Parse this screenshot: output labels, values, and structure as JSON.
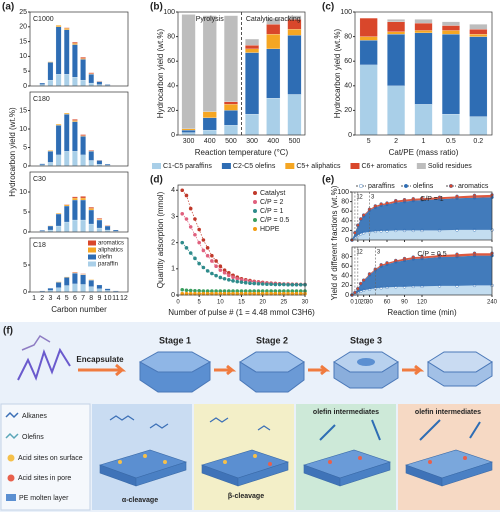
{
  "chart_data": [
    {
      "type": "bar",
      "panel": "(a)",
      "title": "C1000",
      "ylabel": "Hydrocarbon yield (wt.%)",
      "ylim": [
        0,
        25
      ],
      "yticks": [
        0,
        5,
        10,
        15,
        20,
        25
      ],
      "series": [
        {
          "color": "#a9cfe8",
          "values": [
            0,
            0.5,
            2,
            4,
            4,
            3,
            2,
            1,
            0.5,
            0.2,
            0,
            0
          ]
        },
        {
          "color": "#2e6db4",
          "values": [
            0,
            0.5,
            6,
            16,
            15,
            11,
            7,
            3,
            1,
            0.3,
            0,
            0
          ]
        },
        {
          "color": "#f5a623",
          "values": [
            0,
            0,
            0.2,
            0.5,
            0.5,
            0.4,
            0.3,
            0.2,
            0.1,
            0,
            0,
            0
          ]
        },
        {
          "color": "#d9472b",
          "values": [
            0,
            0,
            0,
            0,
            0.2,
            0.4,
            0.4,
            0.3,
            0.1,
            0,
            0,
            0
          ]
        }
      ]
    },
    {
      "type": "bar",
      "title": "C180",
      "ylim": [
        0,
        20
      ],
      "yticks": [
        0,
        5,
        10,
        15
      ],
      "series": [
        {
          "color": "#a9cfe8",
          "values": [
            0,
            0.3,
            1,
            3,
            4,
            4,
            3,
            1.5,
            0.5,
            0.2,
            0,
            0
          ]
        },
        {
          "color": "#2e6db4",
          "values": [
            0,
            0.3,
            3,
            8,
            10,
            8,
            5,
            2.5,
            1,
            0.3,
            0,
            0
          ]
        },
        {
          "color": "#f5a623",
          "values": [
            0,
            0,
            0.2,
            0.3,
            0.3,
            0.3,
            0.2,
            0.1,
            0,
            0,
            0,
            0
          ]
        },
        {
          "color": "#d9472b",
          "values": [
            0,
            0,
            0,
            0,
            0,
            0.3,
            0.3,
            0.2,
            0.1,
            0,
            0,
            0
          ]
        }
      ]
    },
    {
      "type": "bar",
      "title": "C30",
      "ylim": [
        0,
        15
      ],
      "yticks": [
        0,
        5,
        10
      ],
      "series": [
        {
          "color": "#a9cfe8",
          "values": [
            0,
            0.2,
            0.5,
            1.5,
            2.5,
            3,
            3,
            2,
            1,
            0.5,
            0.2,
            0
          ]
        },
        {
          "color": "#2e6db4",
          "values": [
            0,
            0.2,
            1,
            3,
            4,
            5,
            5,
            3.5,
            2,
            1,
            0.3,
            0
          ]
        },
        {
          "color": "#f5a623",
          "values": [
            0,
            0,
            0.1,
            0.2,
            0.3,
            0.5,
            0.5,
            0.4,
            0.2,
            0.1,
            0,
            0
          ]
        },
        {
          "color": "#d9472b",
          "values": [
            0,
            0,
            0,
            0,
            0.1,
            0.3,
            0.4,
            0.3,
            0.2,
            0.1,
            0,
            0
          ]
        }
      ]
    },
    {
      "type": "bar",
      "title": "C18",
      "xlabel": "Carbon number",
      "ylim": [
        0,
        10
      ],
      "yticks": [
        0,
        5
      ],
      "categories": [
        "1",
        "2",
        "3",
        "4",
        "5",
        "6",
        "7",
        "8",
        "9",
        "10",
        "11",
        "12"
      ],
      "series": [
        {
          "name": "paraffin",
          "color": "#a9cfe8",
          "values": [
            0,
            0.1,
            0.3,
            0.8,
            1.2,
            1.5,
            1.4,
            1,
            0.6,
            0.3,
            0.1,
            0
          ]
        },
        {
          "name": "olefin",
          "color": "#2e6db4",
          "values": [
            0,
            0.1,
            0.4,
            1,
            1.5,
            2,
            1.8,
            1.2,
            0.7,
            0.3,
            0.1,
            0
          ]
        },
        {
          "name": "aliphatics",
          "color": "#f5a623",
          "values": [
            0,
            0,
            0,
            0.1,
            0.1,
            0.1,
            0.1,
            0.1,
            0,
            0,
            0,
            0
          ]
        },
        {
          "name": "aromatics",
          "color": "#d9472b",
          "values": [
            0,
            0,
            0,
            0,
            0,
            0.1,
            0.1,
            0,
            0,
            0,
            0,
            0
          ]
        }
      ]
    },
    {
      "type": "bar",
      "panel": "(b)",
      "ylabel": "Hydrocarbon yield (wt.%)",
      "xlabel": "Reaction temperature (°C)",
      "annotations": [
        "Pyrolysis",
        "Catalytic cracking"
      ],
      "categories": [
        "300",
        "400",
        "500",
        "300",
        "400",
        "500"
      ],
      "ylim": [
        0,
        100
      ],
      "yticks": [
        0,
        20,
        40,
        60,
        80,
        100
      ],
      "series": [
        {
          "name": "C1-C5 paraffins",
          "color": "#a9cfe8",
          "values": [
            2,
            4,
            8,
            17,
            30,
            33
          ]
        },
        {
          "name": "C2-C5 olefins",
          "color": "#2e6db4",
          "values": [
            2,
            10,
            12,
            50,
            40,
            48
          ]
        },
        {
          "name": "C5+ aliphatics",
          "color": "#f5a623",
          "values": [
            1,
            5,
            5,
            3,
            12,
            5
          ]
        },
        {
          "name": "C6+ aromatics",
          "color": "#d9472b",
          "values": [
            0,
            0,
            2,
            3,
            8,
            8
          ]
        },
        {
          "name": "Solid residues",
          "color": "#bdbdbd",
          "values": [
            93,
            78,
            70,
            5,
            5,
            3
          ]
        }
      ]
    },
    {
      "type": "bar",
      "panel": "(c)",
      "ylabel": "Hydrocarbon yield (wt.%)",
      "xlabel": "Cat/PE (mass ratio)",
      "categories": [
        "5",
        "2",
        "1",
        "0.5",
        "0.2"
      ],
      "ylim": [
        0,
        100
      ],
      "yticks": [
        0,
        20,
        40,
        60,
        80,
        100
      ],
      "series": [
        {
          "color": "#a9cfe8",
          "values": [
            57,
            40,
            25,
            17,
            15
          ]
        },
        {
          "color": "#2e6db4",
          "values": [
            20,
            42,
            58,
            65,
            65
          ]
        },
        {
          "color": "#f5a623",
          "values": [
            3,
            2,
            2,
            3,
            2
          ]
        },
        {
          "color": "#d9472b",
          "values": [
            15,
            8,
            6,
            4,
            4
          ]
        },
        {
          "color": "#bdbdbd",
          "values": [
            0,
            2,
            3,
            3,
            4
          ]
        }
      ]
    },
    {
      "type": "scatter",
      "panel": "(d)",
      "ylabel": "Quantity adsorption (mmol)",
      "xlabel": "Number of pulse # (1 = 4.48 mmol C3H6)",
      "xlim": [
        0,
        30
      ],
      "xticks": [
        0,
        5,
        10,
        15,
        20,
        25,
        30
      ],
      "ylim": [
        0,
        4.2
      ],
      "yticks": [
        0,
        1,
        2,
        3,
        4
      ],
      "x": [
        1,
        2,
        3,
        4,
        5,
        6,
        7,
        8,
        9,
        10,
        11,
        12,
        13,
        14,
        15,
        16,
        17,
        18,
        19,
        20,
        21,
        22,
        23,
        24,
        25,
        26,
        27,
        28,
        29,
        30
      ],
      "series": [
        {
          "name": "Catalyst",
          "color": "#c0392b",
          "values": [
            4.0,
            3.8,
            3.3,
            2.9,
            2.5,
            2.1,
            1.8,
            1.5,
            1.3,
            1.1,
            0.95,
            0.85,
            0.75,
            0.68,
            0.62,
            0.58,
            0.55,
            0.52,
            0.5,
            0.48,
            0.46,
            0.45,
            0.44,
            0.43,
            0.42,
            0.42,
            0.41,
            0.41,
            0.4,
            0.4
          ]
        },
        {
          "name": "C/P = 2",
          "color": "#e0607e",
          "values": [
            3.1,
            2.9,
            2.6,
            2.3,
            2.0,
            1.7,
            1.5,
            1.3,
            1.1,
            0.95,
            0.85,
            0.75,
            0.68,
            0.62,
            0.58,
            0.55,
            0.52,
            0.5,
            0.48,
            0.46,
            0.45,
            0.44,
            0.43,
            0.42,
            0.41,
            0.41,
            0.4,
            0.4,
            0.4,
            0.4
          ]
        },
        {
          "name": "C/P = 1",
          "color": "#2e8b8b",
          "values": [
            2.0,
            1.8,
            1.6,
            1.4,
            1.2,
            1.05,
            0.92,
            0.82,
            0.74,
            0.67,
            0.62,
            0.58,
            0.54,
            0.51,
            0.49,
            0.47,
            0.45,
            0.44,
            0.43,
            0.42,
            0.41,
            0.41,
            0.4,
            0.4,
            0.4,
            0.39,
            0.39,
            0.39,
            0.39,
            0.39
          ]
        },
        {
          "name": "C/P = 0.5",
          "color": "#3a9e5f",
          "values": [
            0.2,
            0.18,
            0.17,
            0.16,
            0.16,
            0.15,
            0.15,
            0.15,
            0.15,
            0.15,
            0.15,
            0.15,
            0.15,
            0.15,
            0.15,
            0.15,
            0.15,
            0.15,
            0.15,
            0.15,
            0.15,
            0.15,
            0.15,
            0.15,
            0.15,
            0.15,
            0.15,
            0.15,
            0.15,
            0.15
          ]
        },
        {
          "name": "HDPE",
          "color": "#f39c12",
          "values": [
            0.05,
            0.05,
            0.05,
            0.05,
            0.05,
            0.05,
            0.05,
            0.05,
            0.05,
            0.05,
            0.05,
            0.05,
            0.05,
            0.05,
            0.05,
            0.05,
            0.05,
            0.05,
            0.05,
            0.05,
            0.05,
            0.05,
            0.05,
            0.05,
            0.05,
            0.05,
            0.05,
            0.05,
            0.05,
            0.05
          ]
        }
      ]
    },
    {
      "type": "area",
      "panel": "(e)",
      "ylabel": "Yield of different fractions (wt.%)",
      "annotation": "C/P = 1",
      "markers": [
        {
          "x": 5,
          "label": "1"
        },
        {
          "x": 10,
          "label": "2"
        },
        {
          "x": 30,
          "label": "3"
        }
      ],
      "xlim": [
        0,
        240
      ],
      "xticks": [
        0,
        10,
        20,
        30,
        60,
        90,
        120,
        240
      ],
      "ylim": [
        0,
        100
      ],
      "yticks": [
        0,
        20,
        40,
        60,
        80,
        100
      ],
      "x": [
        0,
        5,
        10,
        15,
        20,
        30,
        40,
        50,
        60,
        75,
        90,
        105,
        120,
        150,
        180,
        210,
        240
      ],
      "series": [
        {
          "name": "paraffins",
          "color": "#bcd9ee",
          "values": [
            0,
            5,
            10,
            13,
            15,
            17,
            18,
            19,
            19,
            20,
            20,
            20,
            20,
            20,
            21,
            21,
            21
          ]
        },
        {
          "name": "olefins",
          "color": "#2e6db4",
          "values": [
            0,
            10,
            20,
            30,
            35,
            45,
            50,
            53,
            55,
            58,
            60,
            62,
            63,
            65,
            66,
            67,
            68
          ]
        },
        {
          "name": "aromatics",
          "color": "#d9472b",
          "values": [
            0,
            0,
            1,
            1,
            2,
            2,
            3,
            3,
            3,
            4,
            4,
            4,
            4,
            4,
            4,
            5,
            5
          ]
        }
      ]
    },
    {
      "type": "area",
      "annotation": "C/P = 0.5",
      "xlabel": "Reaction time (min)",
      "markers": [
        {
          "x": 5,
          "label": "1"
        },
        {
          "x": 10,
          "label": "2"
        },
        {
          "x": 40,
          "label": "3"
        }
      ],
      "xlim": [
        0,
        240
      ],
      "xticks": [
        0,
        10,
        20,
        30,
        60,
        90,
        120,
        240
      ],
      "ylim": [
        0,
        100
      ],
      "yticks": [
        0,
        20,
        40,
        60,
        80
      ],
      "x": [
        0,
        5,
        10,
        15,
        20,
        30,
        40,
        50,
        60,
        75,
        90,
        105,
        120,
        150,
        180,
        210,
        240
      ],
      "series": [
        {
          "color": "#bcd9ee",
          "values": [
            0,
            2,
            5,
            8,
            10,
            12,
            14,
            15,
            16,
            17,
            17,
            18,
            18,
            19,
            19,
            20,
            20
          ]
        },
        {
          "color": "#2e6db4",
          "values": [
            0,
            3,
            8,
            15,
            20,
            30,
            38,
            45,
            48,
            52,
            55,
            57,
            58,
            60,
            61,
            62,
            62
          ]
        },
        {
          "color": "#d9472b",
          "values": [
            0,
            0,
            0,
            1,
            1,
            2,
            2,
            3,
            3,
            3,
            4,
            4,
            4,
            4,
            5,
            5,
            5
          ]
        }
      ]
    }
  ],
  "diagram": {
    "label": "(f)",
    "encapsulate": "Encapsulate",
    "stages": [
      "Stage 1",
      "Stage 2",
      "Stage 3"
    ],
    "legend": [
      "Alkanes",
      "Olefins",
      "Acid sites on surface",
      "Acid sites in pore",
      "PE molten layer"
    ],
    "annotations": [
      "α-cleavage",
      "β-cleavage",
      "olefin intermediates",
      "olefin intermediates"
    ]
  }
}
